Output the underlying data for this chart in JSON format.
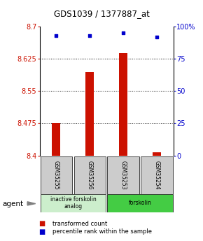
{
  "title": "GDS1039 / 1377887_at",
  "categories": [
    "GSM35255",
    "GSM35256",
    "GSM35253",
    "GSM35254"
  ],
  "bar_values": [
    8.475,
    8.595,
    8.638,
    8.408
  ],
  "percentile_values": [
    93,
    93,
    95,
    92
  ],
  "ylim_left": [
    8.4,
    8.7
  ],
  "ylim_right": [
    0,
    100
  ],
  "yticks_left": [
    8.4,
    8.475,
    8.55,
    8.625,
    8.7
  ],
  "ytick_labels_left": [
    "8.4",
    "8.475",
    "8.55",
    "8.625",
    "8.7"
  ],
  "yticks_right": [
    0,
    25,
    50,
    75,
    100
  ],
  "ytick_labels_right": [
    "0",
    "25",
    "50",
    "75",
    "100%"
  ],
  "bar_color": "#cc1100",
  "scatter_color": "#0000cc",
  "grid_color": "#000000",
  "group_labels": [
    "inactive forskolin\nanalog",
    "forskolin"
  ],
  "group_ranges": [
    [
      0,
      1
    ],
    [
      2,
      3
    ]
  ],
  "group_colors": [
    "#cceecc",
    "#44cc44"
  ],
  "agent_label": "agent",
  "legend_bar_label": "transformed count",
  "legend_scatter_label": "percentile rank within the sample",
  "bar_width": 0.25,
  "background_color": "#ffffff",
  "sample_box_color": "#cccccc"
}
